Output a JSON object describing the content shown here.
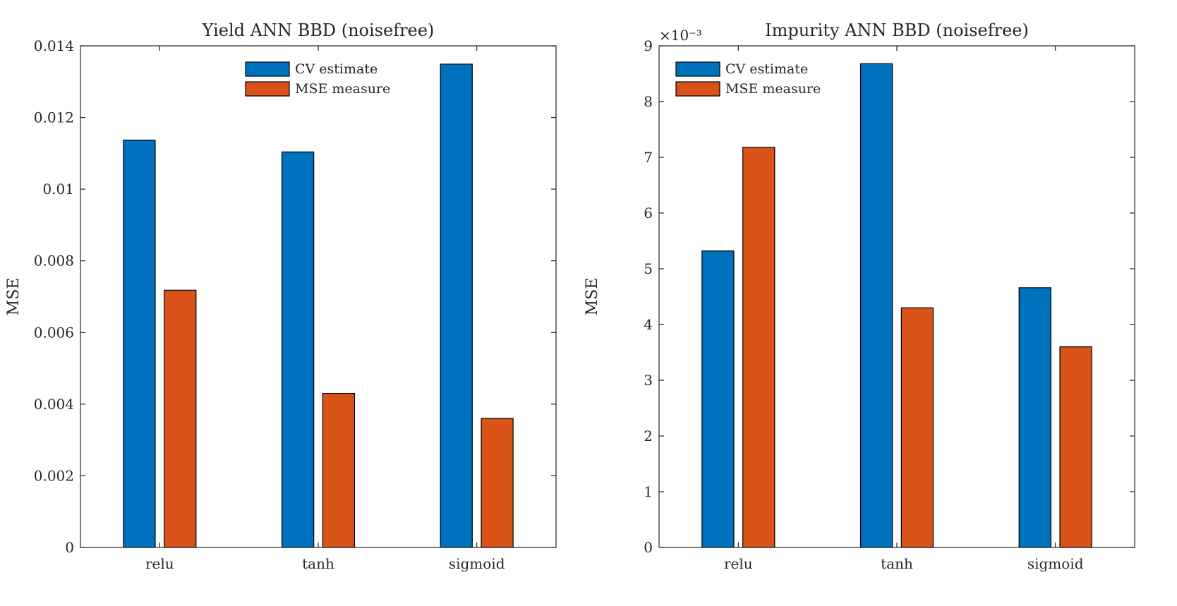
{
  "chart_data": [
    {
      "type": "bar",
      "title": "Yield ANN BBD (noisefree)",
      "xlabel": "",
      "ylabel": "MSE",
      "categories": [
        "relu",
        "tanh",
        "sigmoid"
      ],
      "ylim": [
        0,
        0.014
      ],
      "yticks": [
        0,
        0.002,
        0.004,
        0.006,
        0.008,
        0.01,
        0.012,
        0.014
      ],
      "ytick_labels": [
        "0",
        "0.002",
        "0.004",
        "0.006",
        "0.008",
        "0.01",
        "0.012",
        "0.014"
      ],
      "exponent_label": "",
      "grid": false,
      "legend_position": "top-center",
      "series": [
        {
          "name": "CV estimate",
          "color": "#0072BD",
          "values": [
            0.01137,
            0.01104,
            0.01349
          ]
        },
        {
          "name": "MSE measure",
          "color": "#D95319",
          "values": [
            0.00718,
            0.0043,
            0.0036
          ]
        }
      ]
    },
    {
      "type": "bar",
      "title": "Impurity ANN BBD (noisefree)",
      "xlabel": "",
      "ylabel": "MSE",
      "categories": [
        "relu",
        "tanh",
        "sigmoid"
      ],
      "ylim": [
        0,
        9
      ],
      "yticks": [
        0,
        1,
        2,
        3,
        4,
        5,
        6,
        7,
        8,
        9
      ],
      "ytick_labels": [
        "0",
        "1",
        "2",
        "3",
        "4",
        "5",
        "6",
        "7",
        "8",
        "9"
      ],
      "exponent_label": "×10⁻³",
      "grid": false,
      "legend_position": "top-left",
      "series": [
        {
          "name": "CV estimate",
          "color": "#0072BD",
          "values": [
            5.32,
            8.68,
            4.66
          ]
        },
        {
          "name": "MSE measure",
          "color": "#D95319",
          "values": [
            7.18,
            4.3,
            3.6
          ]
        }
      ]
    }
  ]
}
